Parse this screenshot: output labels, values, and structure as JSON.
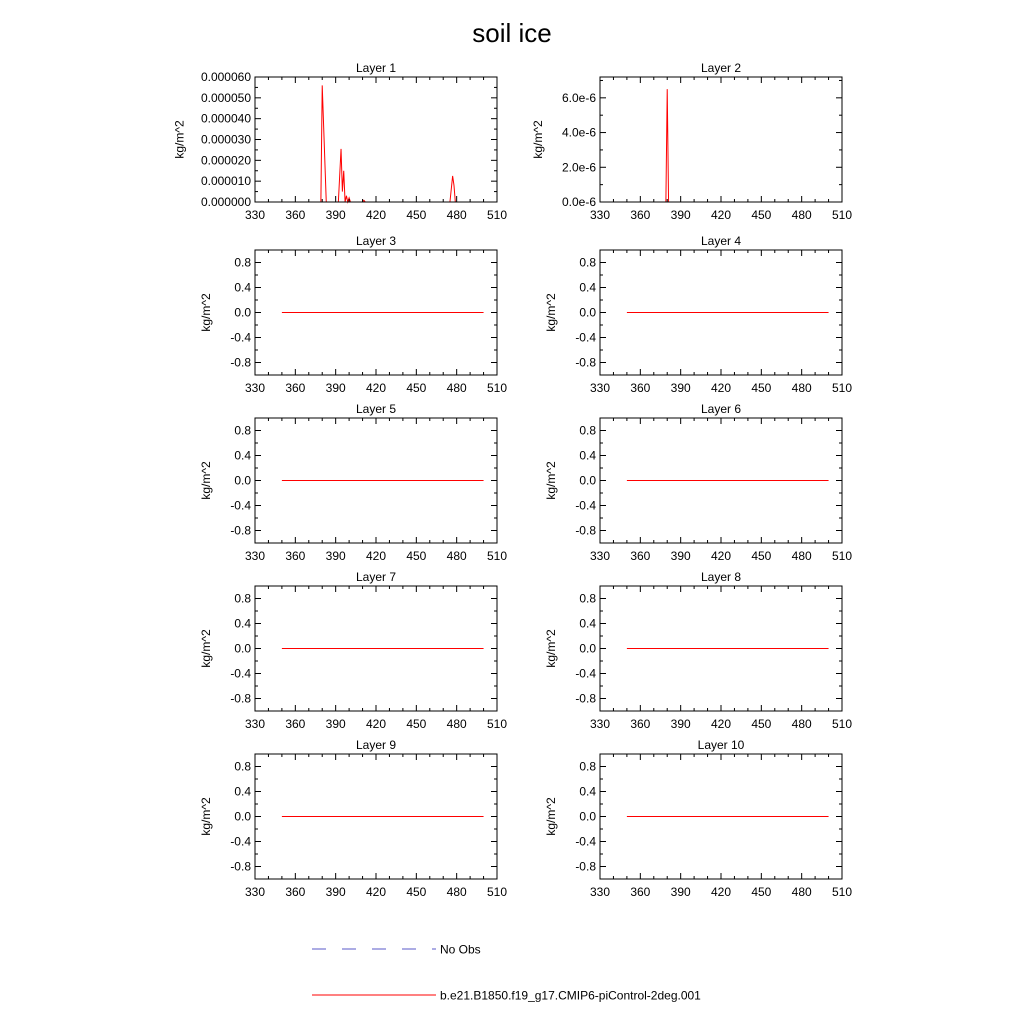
{
  "figure": {
    "title": "soil ice"
  },
  "colors": {
    "model": "#ff0000",
    "obs": "#5a5ac8",
    "axis": "#000000"
  },
  "chart_data": [
    {
      "type": "line",
      "panel_title": "Layer 1",
      "ylabel": "kg/m^2",
      "xlim": [
        330,
        510
      ],
      "xticks": [
        330,
        360,
        390,
        420,
        450,
        480,
        510
      ],
      "xtick_labels": [
        "330",
        "360",
        "390",
        "420",
        "450",
        "480",
        "510"
      ],
      "ylim": [
        0,
        6e-05
      ],
      "yticks": [
        0,
        1e-05,
        2e-05,
        3e-05,
        4e-05,
        5e-05,
        6e-05
      ],
      "ytick_labels": [
        "0.000000",
        "0.000010",
        "0.000020",
        "0.000030",
        "0.000040",
        "0.000050",
        "0.000060"
      ],
      "series": [
        {
          "name": "b.e21.B1850.f19_g17.CMIP6-piControl-2deg.001",
          "x": [
            350,
            375,
            379,
            380,
            383,
            392,
            394,
            395,
            396,
            397,
            398,
            399,
            400,
            401,
            402,
            410,
            411,
            412,
            475,
            477,
            478,
            479,
            481,
            500
          ],
          "y": [
            0,
            0,
            0,
            5.6e-05,
            0,
            0,
            2.55e-05,
            5e-06,
            1.5e-05,
            0,
            3e-06,
            0,
            2e-06,
            0,
            0,
            0,
            8e-07,
            0,
            0,
            1.25e-05,
            8e-06,
            0,
            0,
            0
          ]
        }
      ]
    },
    {
      "type": "line",
      "panel_title": "Layer 2",
      "ylabel": "kg/m^2",
      "xlim": [
        330,
        510
      ],
      "xticks": [
        330,
        360,
        390,
        420,
        450,
        480,
        510
      ],
      "xtick_labels": [
        "330",
        "360",
        "390",
        "420",
        "450",
        "480",
        "510"
      ],
      "ylim": [
        0,
        7.2e-06
      ],
      "yticks": [
        0,
        2e-06,
        4e-06,
        6e-06
      ],
      "ytick_labels": [
        "0.0e-6",
        "2.0e-6",
        "4.0e-6",
        "6.0e-6"
      ],
      "series": [
        {
          "name": "b.e21.B1850.f19_g17.CMIP6-piControl-2deg.001",
          "x": [
            350,
            378,
            379,
            380,
            381,
            500
          ],
          "y": [
            0,
            0,
            0,
            6.5e-06,
            0,
            0
          ]
        }
      ]
    },
    {
      "type": "line",
      "panel_title": "Layer 3",
      "ylabel": "kg/m^2",
      "xlim": [
        330,
        510
      ],
      "xticks": [
        330,
        360,
        390,
        420,
        450,
        480,
        510
      ],
      "xtick_labels": [
        "330",
        "360",
        "390",
        "420",
        "450",
        "480",
        "510"
      ],
      "ylim": [
        -1,
        1
      ],
      "yticks": [
        -0.8,
        -0.4,
        0,
        0.4,
        0.8
      ],
      "ytick_labels": [
        "-0.8",
        "-0.4",
        "0.0",
        "0.4",
        "0.8"
      ],
      "series": [
        {
          "name": "b.e21.B1850.f19_g17.CMIP6-piControl-2deg.001",
          "x": [
            350,
            500
          ],
          "y": [
            0,
            0
          ]
        }
      ]
    },
    {
      "type": "line",
      "panel_title": "Layer 4",
      "ylabel": "kg/m^2",
      "xlim": [
        330,
        510
      ],
      "xticks": [
        330,
        360,
        390,
        420,
        450,
        480,
        510
      ],
      "xtick_labels": [
        "330",
        "360",
        "390",
        "420",
        "450",
        "480",
        "510"
      ],
      "ylim": [
        -1,
        1
      ],
      "yticks": [
        -0.8,
        -0.4,
        0,
        0.4,
        0.8
      ],
      "ytick_labels": [
        "-0.8",
        "-0.4",
        "0.0",
        "0.4",
        "0.8"
      ],
      "series": [
        {
          "name": "b.e21.B1850.f19_g17.CMIP6-piControl-2deg.001",
          "x": [
            350,
            500
          ],
          "y": [
            0,
            0
          ]
        }
      ]
    },
    {
      "type": "line",
      "panel_title": "Layer 5",
      "ylabel": "kg/m^2",
      "xlim": [
        330,
        510
      ],
      "xticks": [
        330,
        360,
        390,
        420,
        450,
        480,
        510
      ],
      "xtick_labels": [
        "330",
        "360",
        "390",
        "420",
        "450",
        "480",
        "510"
      ],
      "ylim": [
        -1,
        1
      ],
      "yticks": [
        -0.8,
        -0.4,
        0,
        0.4,
        0.8
      ],
      "ytick_labels": [
        "-0.8",
        "-0.4",
        "0.0",
        "0.4",
        "0.8"
      ],
      "series": [
        {
          "name": "b.e21.B1850.f19_g17.CMIP6-piControl-2deg.001",
          "x": [
            350,
            500
          ],
          "y": [
            0,
            0
          ]
        }
      ]
    },
    {
      "type": "line",
      "panel_title": "Layer 6",
      "ylabel": "kg/m^2",
      "xlim": [
        330,
        510
      ],
      "xticks": [
        330,
        360,
        390,
        420,
        450,
        480,
        510
      ],
      "xtick_labels": [
        "330",
        "360",
        "390",
        "420",
        "450",
        "480",
        "510"
      ],
      "ylim": [
        -1,
        1
      ],
      "yticks": [
        -0.8,
        -0.4,
        0,
        0.4,
        0.8
      ],
      "ytick_labels": [
        "-0.8",
        "-0.4",
        "0.0",
        "0.4",
        "0.8"
      ],
      "series": [
        {
          "name": "b.e21.B1850.f19_g17.CMIP6-piControl-2deg.001",
          "x": [
            350,
            500
          ],
          "y": [
            0,
            0
          ]
        }
      ]
    },
    {
      "type": "line",
      "panel_title": "Layer 7",
      "ylabel": "kg/m^2",
      "xlim": [
        330,
        510
      ],
      "xticks": [
        330,
        360,
        390,
        420,
        450,
        480,
        510
      ],
      "xtick_labels": [
        "330",
        "360",
        "390",
        "420",
        "450",
        "480",
        "510"
      ],
      "ylim": [
        -1,
        1
      ],
      "yticks": [
        -0.8,
        -0.4,
        0,
        0.4,
        0.8
      ],
      "ytick_labels": [
        "-0.8",
        "-0.4",
        "0.0",
        "0.4",
        "0.8"
      ],
      "series": [
        {
          "name": "b.e21.B1850.f19_g17.CMIP6-piControl-2deg.001",
          "x": [
            350,
            500
          ],
          "y": [
            0,
            0
          ]
        }
      ]
    },
    {
      "type": "line",
      "panel_title": "Layer 8",
      "ylabel": "kg/m^2",
      "xlim": [
        330,
        510
      ],
      "xticks": [
        330,
        360,
        390,
        420,
        450,
        480,
        510
      ],
      "xtick_labels": [
        "330",
        "360",
        "390",
        "420",
        "450",
        "480",
        "510"
      ],
      "ylim": [
        -1,
        1
      ],
      "yticks": [
        -0.8,
        -0.4,
        0,
        0.4,
        0.8
      ],
      "ytick_labels": [
        "-0.8",
        "-0.4",
        "0.0",
        "0.4",
        "0.8"
      ],
      "series": [
        {
          "name": "b.e21.B1850.f19_g17.CMIP6-piControl-2deg.001",
          "x": [
            350,
            500
          ],
          "y": [
            0,
            0
          ]
        }
      ]
    },
    {
      "type": "line",
      "panel_title": "Layer 9",
      "ylabel": "kg/m^2",
      "xlim": [
        330,
        510
      ],
      "xticks": [
        330,
        360,
        390,
        420,
        450,
        480,
        510
      ],
      "xtick_labels": [
        "330",
        "360",
        "390",
        "420",
        "450",
        "480",
        "510"
      ],
      "ylim": [
        -1,
        1
      ],
      "yticks": [
        -0.8,
        -0.4,
        0,
        0.4,
        0.8
      ],
      "ytick_labels": [
        "-0.8",
        "-0.4",
        "0.0",
        "0.4",
        "0.8"
      ],
      "series": [
        {
          "name": "b.e21.B1850.f19_g17.CMIP6-piControl-2deg.001",
          "x": [
            350,
            500
          ],
          "y": [
            0,
            0
          ]
        }
      ]
    },
    {
      "type": "line",
      "panel_title": "Layer 10",
      "ylabel": "kg/m^2",
      "xlim": [
        330,
        510
      ],
      "xticks": [
        330,
        360,
        390,
        420,
        450,
        480,
        510
      ],
      "xtick_labels": [
        "330",
        "360",
        "390",
        "420",
        "450",
        "480",
        "510"
      ],
      "ylim": [
        -1,
        1
      ],
      "yticks": [
        -0.8,
        -0.4,
        0,
        0.4,
        0.8
      ],
      "ytick_labels": [
        "-0.8",
        "-0.4",
        "0.0",
        "0.4",
        "0.8"
      ],
      "series": [
        {
          "name": "b.e21.B1850.f19_g17.CMIP6-piControl-2deg.001",
          "x": [
            350,
            500
          ],
          "y": [
            0,
            0
          ]
        }
      ]
    }
  ],
  "legend": {
    "placement": "bottom-center",
    "items": [
      {
        "label": "No Obs",
        "style": "dashed",
        "color_key": "obs"
      },
      {
        "label": "b.e21.B1850.f19_g17.CMIP6-piControl-2deg.001",
        "style": "solid",
        "color_key": "model"
      }
    ]
  }
}
